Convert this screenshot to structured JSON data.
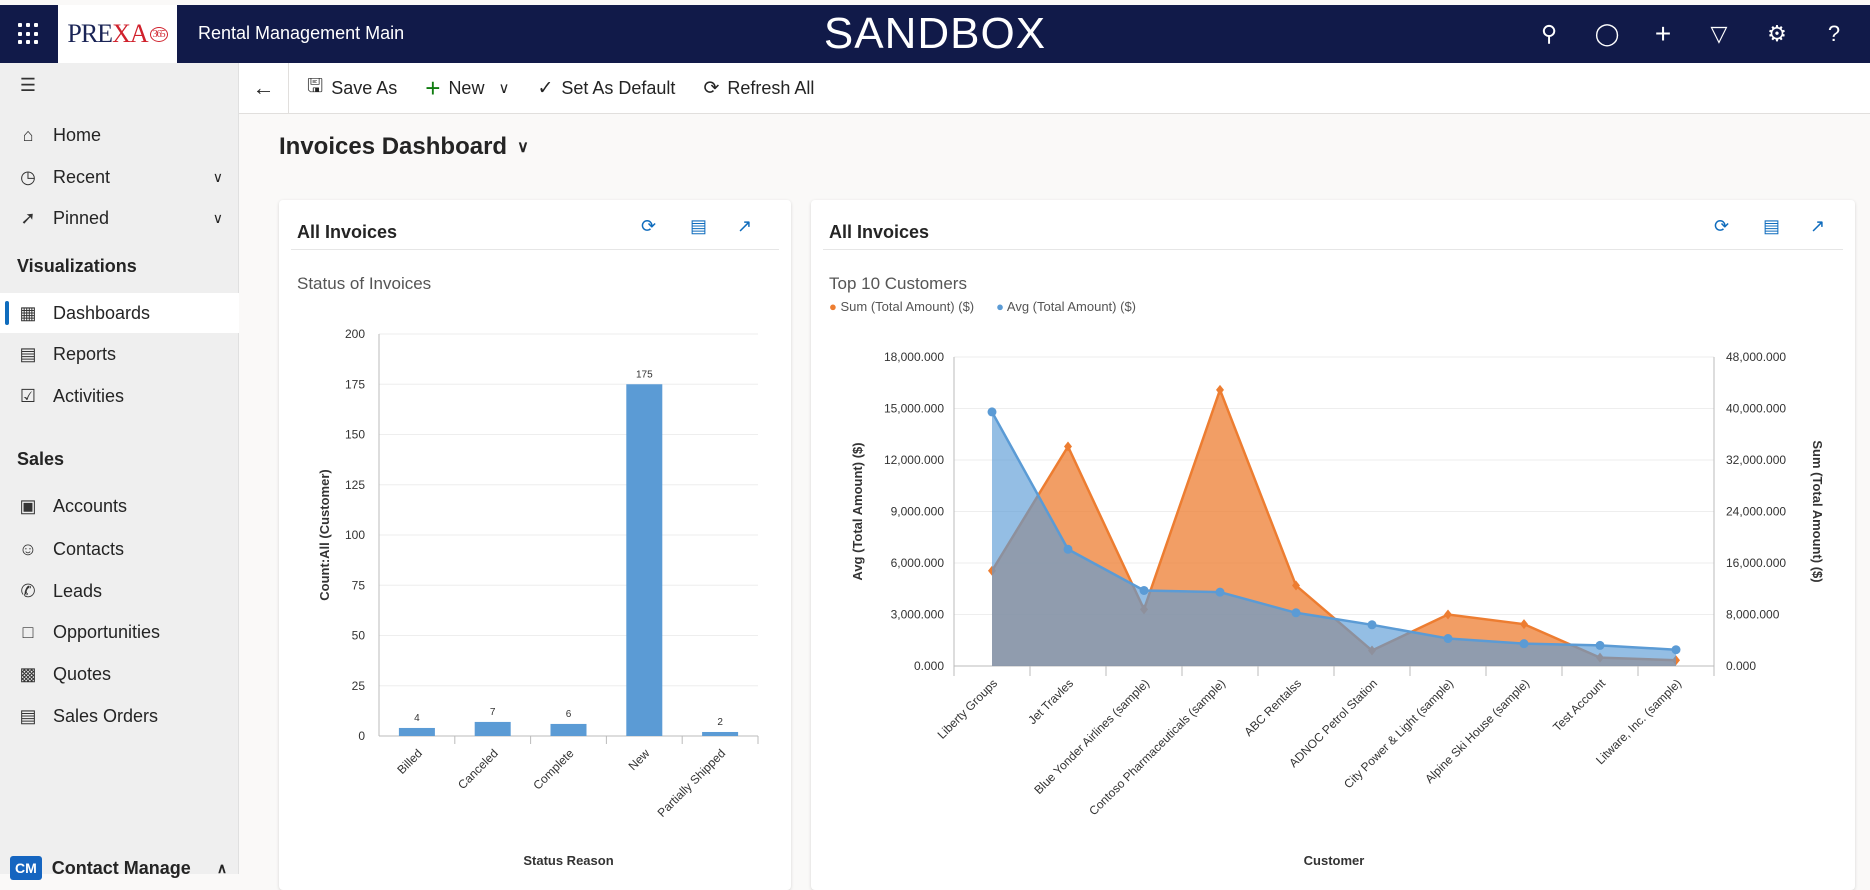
{
  "topbar": {
    "logo": "PREXA365",
    "app_name": "Rental Management Main",
    "environment": "SANDBOX",
    "icons": [
      "search-icon",
      "lightbulb-icon",
      "plus-icon",
      "filter-icon",
      "gear-icon",
      "help-icon"
    ]
  },
  "toolbar": {
    "save_as": "Save As",
    "new": "New",
    "set_default": "Set As Default",
    "refresh_all": "Refresh All"
  },
  "sidebar": {
    "items": [
      {
        "label": "Home",
        "icon": "home-icon"
      },
      {
        "label": "Recent",
        "icon": "clock-icon"
      },
      {
        "label": "Pinned",
        "icon": "pin-icon"
      }
    ],
    "sections": [
      {
        "title": "Visualizations",
        "items": [
          {
            "label": "Dashboards",
            "selected": true
          },
          {
            "label": "Reports"
          },
          {
            "label": "Activities"
          }
        ]
      },
      {
        "title": "Sales",
        "items": [
          {
            "label": "Accounts"
          },
          {
            "label": "Contacts"
          },
          {
            "label": "Leads"
          },
          {
            "label": "Opportunities"
          },
          {
            "label": "Quotes"
          },
          {
            "label": "Sales Orders"
          }
        ]
      }
    ],
    "area": {
      "badge": "CM",
      "label": "Contact Manage"
    }
  },
  "page": {
    "title": "Invoices Dashboard"
  },
  "cards": [
    {
      "title": "All Invoices",
      "subtitle": "Status of Invoices"
    },
    {
      "title": "All Invoices",
      "subtitle": "Top 10 Customers"
    }
  ],
  "chart_data": [
    {
      "type": "bar",
      "title": "Status of Invoices",
      "xlabel": "Status Reason",
      "ylabel": "Count:All (Customer)",
      "categories": [
        "Billed",
        "Canceled",
        "Complete",
        "New",
        "Partially Shipped"
      ],
      "values": [
        4,
        7,
        6,
        175,
        2
      ],
      "ylim": [
        0,
        200
      ],
      "yticks": [
        0,
        25,
        50,
        75,
        100,
        125,
        150,
        175,
        200
      ],
      "color": "#5b9bd5",
      "grid": true
    },
    {
      "type": "area",
      "title": "Top 10 Customers",
      "xlabel": "Customer",
      "ylabel": "Avg (Total Amount) ($)",
      "y2label": "Sum (Total Amount) ($)",
      "legend": "top-left",
      "categories": [
        "Liberty Groups",
        "Jet Travles",
        "Blue Yonder Airlines (sample)",
        "Contoso Pharmaceuticals (sample)",
        "ABC Rentalss",
        "ADNOC Petrol Station",
        "City Power & Light (sample)",
        "Alpine Ski House (sample)",
        "Test Account",
        "Litware, Inc. (sample)"
      ],
      "ylim": [
        0,
        18000000
      ],
      "y2lim": [
        0,
        48000000
      ],
      "yticks": [
        "0.000",
        "3,000.000",
        "6,000.000",
        "9,000.000",
        "12,000.000",
        "15,000.000",
        "18,000.000"
      ],
      "y2ticks": [
        "0.000",
        "8,000.000",
        "16,000.000",
        "24,000.000",
        "32,000.000",
        "40,000.000",
        "48,000.000"
      ],
      "series": [
        {
          "name": "Sum (Total Amount) ($)",
          "axis": "right",
          "color": "#ed7d31",
          "values": [
            14800000,
            34100000,
            8800000,
            42900000,
            12500000,
            2400000,
            8000000,
            6500000,
            1300000,
            900000
          ]
        },
        {
          "name": "Avg (Total Amount) ($)",
          "axis": "left",
          "color": "#5b9bd5",
          "values": [
            14800000,
            6800000,
            4400000,
            4300000,
            3100000,
            2400000,
            1600000,
            1300000,
            1200000,
            950000
          ]
        }
      ]
    }
  ]
}
